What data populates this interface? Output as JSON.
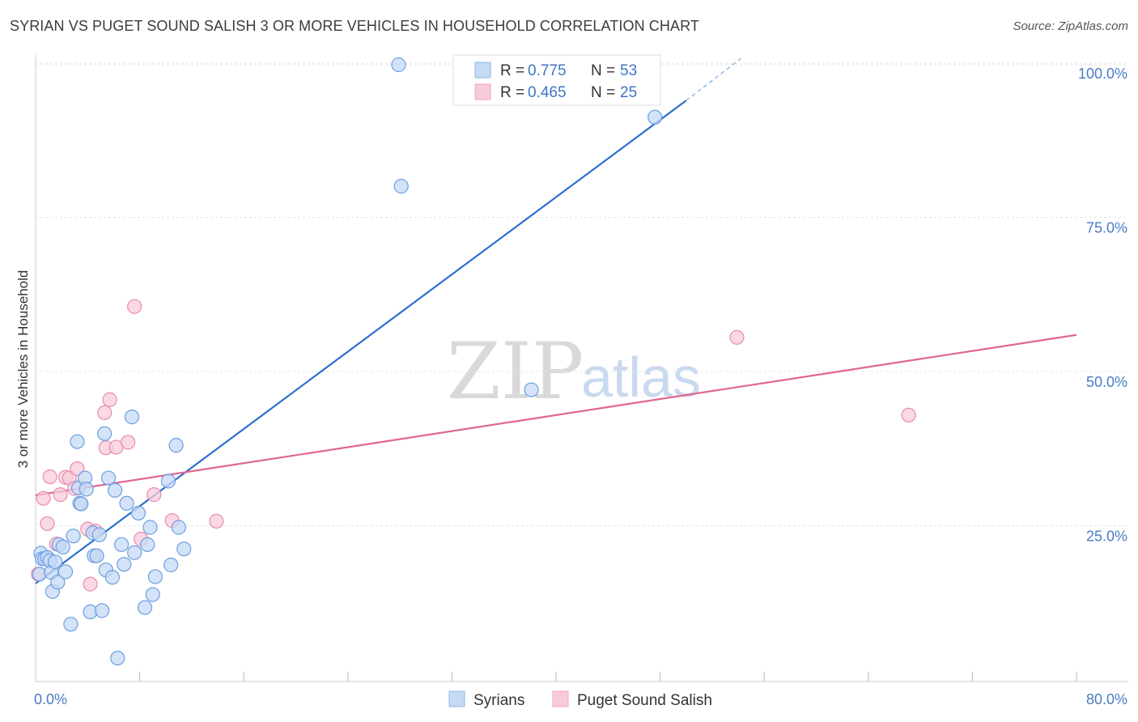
{
  "header": {
    "title": "SYRIAN VS PUGET SOUND SALISH 3 OR MORE VEHICLES IN HOUSEHOLD CORRELATION CHART",
    "source": "Source: ZipAtlas.com"
  },
  "watermark": {
    "zip": "ZIP",
    "atlas": "atlas"
  },
  "legend_top": [
    {
      "r_label": "R =",
      "r_value": "0.775",
      "n_label": "N =",
      "n_value": "53"
    },
    {
      "r_label": "R =",
      "r_value": "0.465",
      "n_label": "N =",
      "n_value": "25"
    }
  ],
  "chart_data": {
    "type": "scatter",
    "title": "SYRIAN VS PUGET SOUND SALISH 3 OR MORE VEHICLES IN HOUSEHOLD CORRELATION CHART",
    "xlabel": "",
    "ylabel": "3 or more Vehicles in Household",
    "xlim": [
      0,
      80
    ],
    "ylim": [
      0,
      105
    ],
    "x_tick_labels": [
      "0.0%",
      "80.0%"
    ],
    "y_ticks": [
      25,
      50,
      75,
      100
    ],
    "y_tick_labels": [
      "25.0%",
      "50.0%",
      "75.0%",
      "100.0%"
    ],
    "grid": true,
    "legend_position": "bottom-center",
    "series": [
      {
        "name": "Syrians",
        "color": "#8fb8ea",
        "fill": "#c5daf5",
        "stroke": "#6c9ee0",
        "r": "0.775",
        "n": "53",
        "trend": {
          "x": [
            0,
            50
          ],
          "y": [
            15.9,
            94.2
          ],
          "dashed_to": [
            54.2,
            101
          ]
        },
        "points": [
          [
            0.3,
            17.4
          ],
          [
            0.4,
            20.8
          ],
          [
            0.5,
            19.9
          ],
          [
            0.7,
            19.9
          ],
          [
            0.9,
            20.1
          ],
          [
            1.1,
            19.6
          ],
          [
            1.2,
            17.7
          ],
          [
            1.3,
            14.6
          ],
          [
            1.5,
            19.4
          ],
          [
            1.7,
            16.1
          ],
          [
            1.8,
            22.2
          ],
          [
            2.1,
            21.8
          ],
          [
            2.3,
            17.8
          ],
          [
            2.7,
            9.3
          ],
          [
            2.9,
            23.6
          ],
          [
            3.2,
            38.9
          ],
          [
            3.3,
            31.4
          ],
          [
            3.4,
            28.9
          ],
          [
            3.5,
            28.8
          ],
          [
            3.8,
            33.0
          ],
          [
            3.9,
            31.2
          ],
          [
            4.2,
            11.3
          ],
          [
            4.4,
            24.1
          ],
          [
            4.5,
            20.4
          ],
          [
            4.7,
            20.4
          ],
          [
            4.9,
            23.8
          ],
          [
            5.1,
            11.5
          ],
          [
            5.3,
            40.2
          ],
          [
            5.4,
            18.1
          ],
          [
            5.6,
            33.0
          ],
          [
            5.9,
            16.9
          ],
          [
            6.1,
            31.0
          ],
          [
            6.3,
            3.8
          ],
          [
            6.6,
            22.2
          ],
          [
            6.8,
            19.0
          ],
          [
            7.0,
            28.9
          ],
          [
            7.4,
            42.9
          ],
          [
            7.6,
            20.9
          ],
          [
            7.9,
            27.3
          ],
          [
            8.4,
            12.0
          ],
          [
            8.6,
            22.2
          ],
          [
            8.8,
            25.0
          ],
          [
            9.0,
            14.1
          ],
          [
            9.2,
            17.0
          ],
          [
            10.2,
            32.5
          ],
          [
            10.4,
            18.9
          ],
          [
            10.8,
            38.3
          ],
          [
            11.0,
            25.0
          ],
          [
            11.4,
            21.5
          ],
          [
            27.9,
            100.0
          ],
          [
            28.1,
            80.3
          ],
          [
            38.1,
            47.3
          ],
          [
            47.6,
            91.5
          ]
        ]
      },
      {
        "name": "Puget Sound Salish",
        "color": "#f2a7c2",
        "fill": "#f8cbdb",
        "stroke": "#e88bb0",
        "r": "0.465",
        "n": "25",
        "trend": {
          "x": [
            0,
            80
          ],
          "y": [
            30.2,
            56.2
          ]
        },
        "points": [
          [
            0.2,
            17.4
          ],
          [
            0.6,
            29.7
          ],
          [
            0.9,
            25.6
          ],
          [
            1.1,
            33.2
          ],
          [
            1.6,
            22.3
          ],
          [
            1.9,
            30.3
          ],
          [
            2.3,
            33.1
          ],
          [
            2.6,
            33.0
          ],
          [
            3.0,
            31.3
          ],
          [
            3.2,
            34.5
          ],
          [
            4.0,
            24.7
          ],
          [
            4.2,
            15.8
          ],
          [
            4.6,
            24.4
          ],
          [
            5.3,
            43.6
          ],
          [
            5.4,
            37.9
          ],
          [
            5.7,
            45.7
          ],
          [
            6.2,
            38.0
          ],
          [
            7.1,
            38.8
          ],
          [
            7.6,
            60.8
          ],
          [
            8.1,
            23.1
          ],
          [
            9.1,
            30.3
          ],
          [
            10.5,
            26.1
          ],
          [
            13.9,
            26.0
          ],
          [
            53.9,
            55.8
          ],
          [
            67.1,
            43.2
          ]
        ]
      }
    ]
  }
}
